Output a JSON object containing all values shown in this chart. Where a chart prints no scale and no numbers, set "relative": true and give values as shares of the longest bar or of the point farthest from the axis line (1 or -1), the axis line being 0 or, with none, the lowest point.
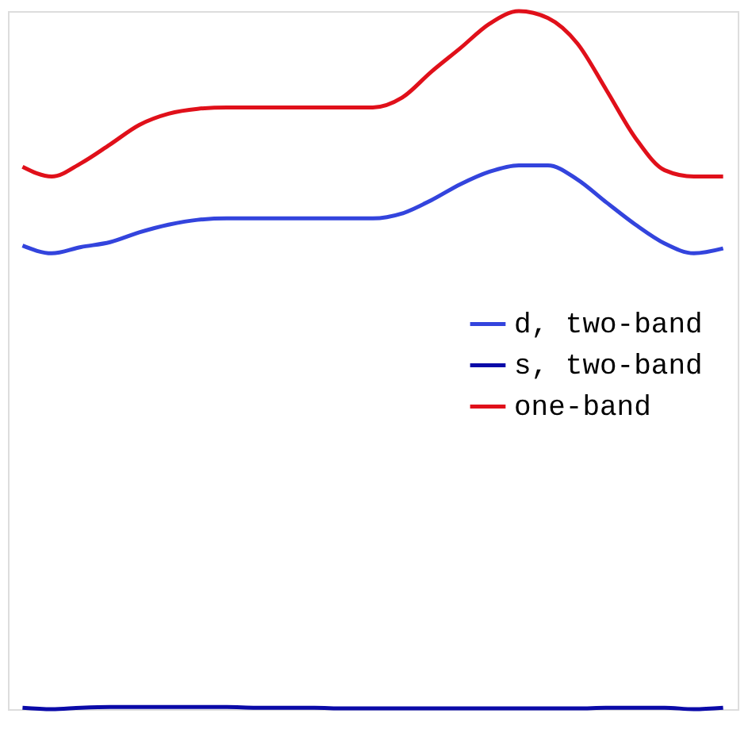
{
  "chart_data": {
    "type": "line",
    "relative": true,
    "tick_labels": false,
    "legend": "right",
    "grid": false,
    "line_style": "solid",
    "marker": "none",
    "categories": [
      null,
      null,
      null,
      null,
      null,
      null,
      null,
      null,
      null,
      null,
      null,
      null,
      null,
      null,
      null,
      null,
      null,
      null,
      null,
      null,
      null,
      null,
      null,
      null,
      null
    ],
    "series": [
      {
        "name": "d, two-band",
        "color": "#3344dd",
        "values": [
          0.664,
          0.653,
          0.662,
          0.669,
          0.683,
          0.694,
          0.701,
          0.703,
          0.703,
          0.703,
          0.703,
          0.703,
          0.703,
          0.71,
          0.729,
          0.752,
          0.77,
          0.779,
          0.779,
          0.759,
          0.726,
          0.694,
          0.667,
          0.653,
          0.66
        ]
      },
      {
        "name": "s, two-band",
        "color": "#0a0aa8",
        "values": [
          0.002,
          0.0,
          0.002,
          0.003,
          0.003,
          0.003,
          0.003,
          0.003,
          0.002,
          0.002,
          0.002,
          0.001,
          0.001,
          0.001,
          0.001,
          0.001,
          0.001,
          0.001,
          0.001,
          0.001,
          0.002,
          0.002,
          0.002,
          0.0,
          0.002
        ]
      },
      {
        "name": "one-band",
        "color": "#e0101a",
        "values": [
          0.777,
          0.763,
          0.782,
          0.809,
          0.837,
          0.853,
          0.86,
          0.862,
          0.862,
          0.862,
          0.862,
          0.862,
          0.862,
          0.876,
          0.913,
          0.947,
          0.982,
          1.0,
          0.99,
          0.954,
          0.887,
          0.818,
          0.772,
          0.763,
          0.763
        ]
      }
    ]
  }
}
